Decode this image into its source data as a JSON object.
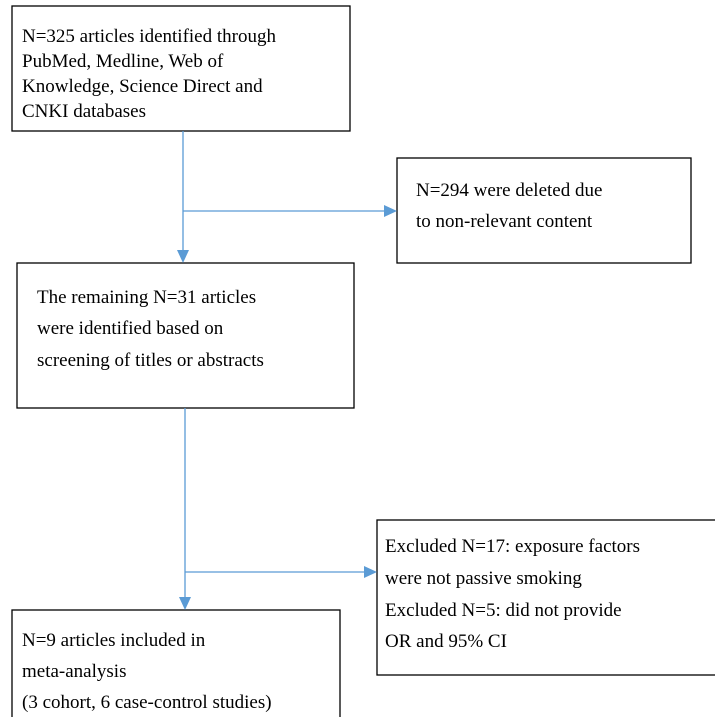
{
  "nodes": [
    {
      "lines": [
        "N=325 articles identified through",
        "PubMed, Medline, Web of",
        "Knowledge, Science Direct and",
        "CNKI databases"
      ]
    },
    {
      "lines": [
        "N=294 were deleted due",
        "to non-relevant content"
      ]
    },
    {
      "lines": [
        "The remaining N=31 articles",
        "were identified based on",
        "screening of titles or abstracts"
      ]
    },
    {
      "lines": [
        "Excluded N=17: exposure factors",
        "were not passive smoking",
        "Excluded N=5: did not provide",
        "OR and 95% CI"
      ]
    },
    {
      "lines": [
        "N=9 articles included in",
        "meta-analysis",
        "(3 cohort, 6 case-control studies)"
      ]
    }
  ]
}
